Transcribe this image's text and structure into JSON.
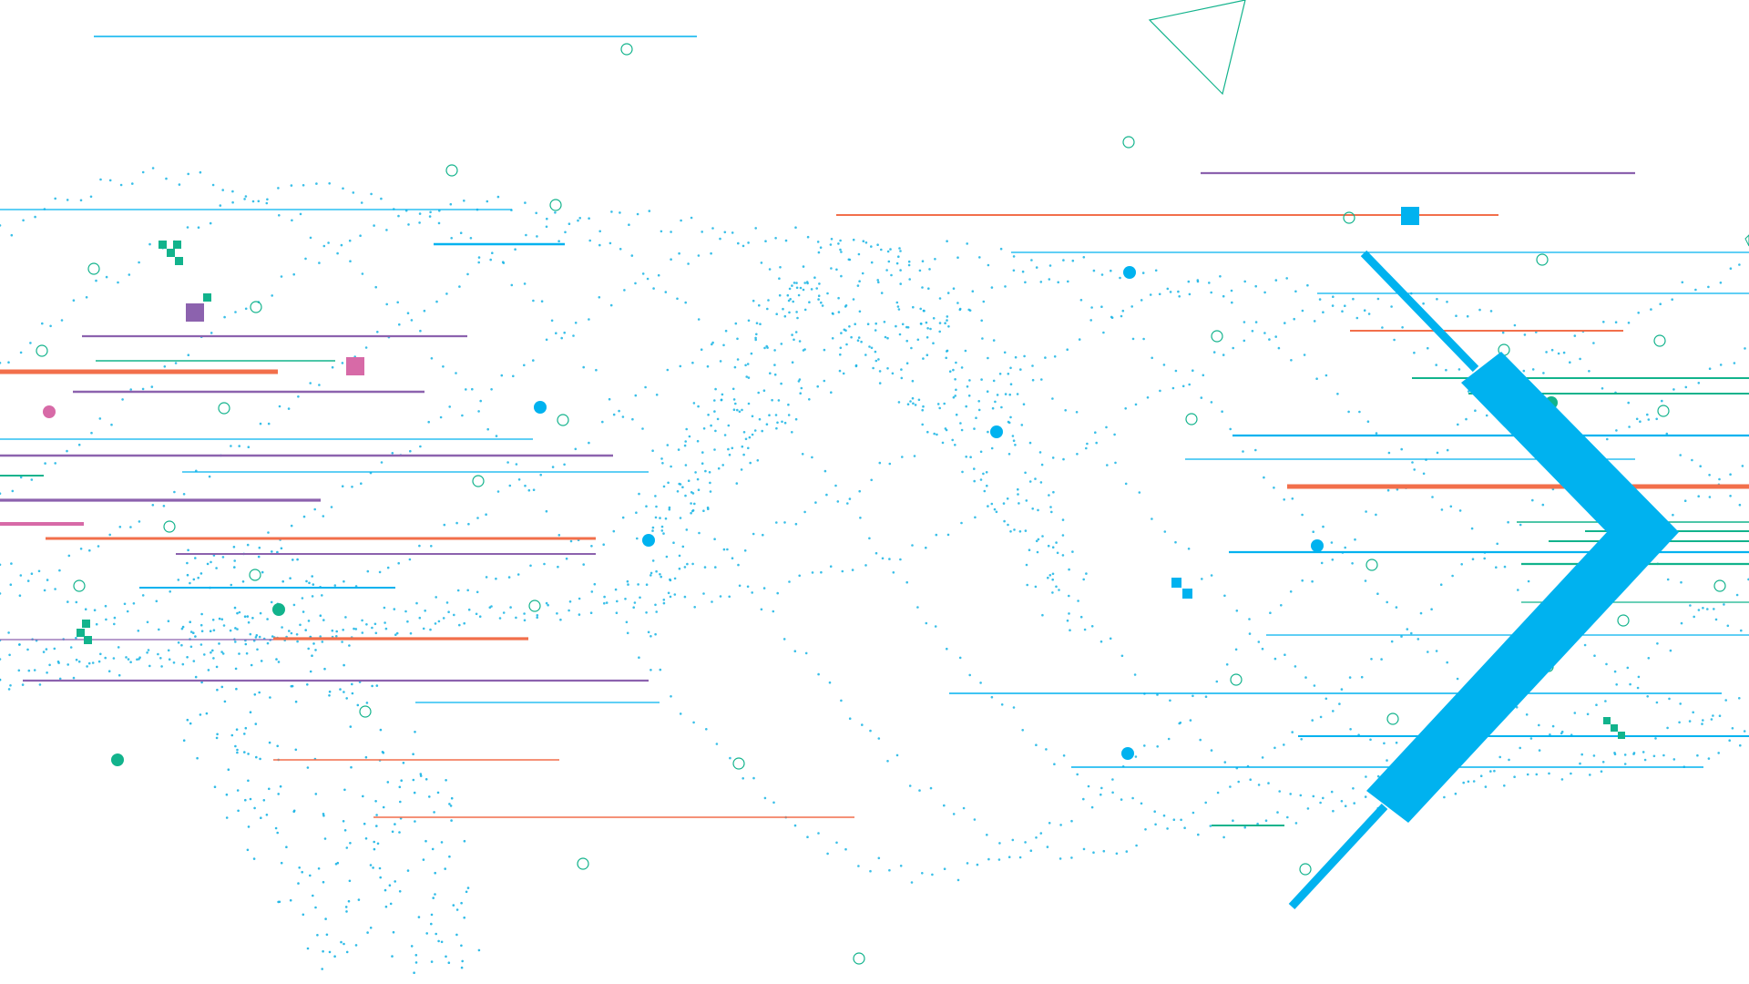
{
  "palette": {
    "background": "#ffffff",
    "cyan": "#00b2ef",
    "orange": "#f26f4b",
    "purple": "#8c62ae",
    "green": "#12b38c",
    "pink": "#d76aa7",
    "dot": "#18b4e4"
  },
  "icons": {
    "main": "chevron-right-arrow",
    "outline": "triangle-outline"
  }
}
